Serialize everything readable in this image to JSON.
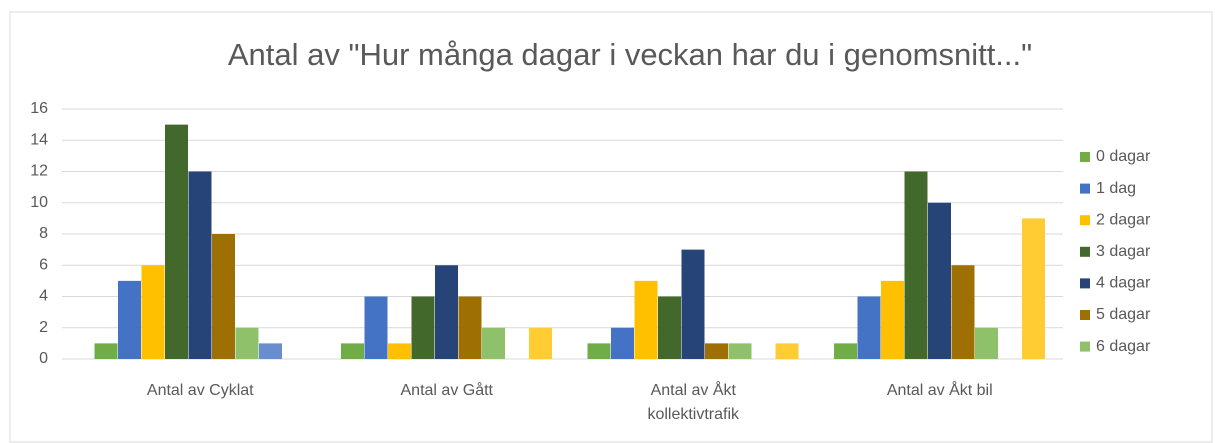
{
  "chart_data": {
    "type": "bar",
    "title": "Antal av \"Hur många dagar i veckan har du i genomsnitt...\"",
    "categories": [
      "Antal av Cyklat",
      "Antal av Gått",
      "Antal av Åkt kollektivtrafik",
      "Antal av Åkt bil"
    ],
    "series": [
      {
        "name": "0 dagar",
        "color": "#70ad47",
        "values": [
          1,
          1,
          1,
          1
        ]
      },
      {
        "name": "1 dag",
        "color": "#4472c4",
        "values": [
          5,
          4,
          2,
          4
        ]
      },
      {
        "name": "2 dagar",
        "color": "#ffc000",
        "values": [
          6,
          1,
          5,
          5
        ]
      },
      {
        "name": "3 dagar",
        "color": "#43682b",
        "values": [
          15,
          4,
          4,
          12
        ]
      },
      {
        "name": "4 dagar",
        "color": "#264478",
        "values": [
          12,
          6,
          7,
          10
        ]
      },
      {
        "name": "5 dagar",
        "color": "#9e7004",
        "values": [
          8,
          4,
          1,
          6
        ]
      },
      {
        "name": "6 dagar",
        "color": "#8fc16b",
        "values": [
          2,
          2,
          1,
          2
        ]
      },
      {
        "color": "#698ed0",
        "values": [
          1,
          null,
          null,
          null
        ]
      },
      {
        "color": "#ffcd33",
        "values": [
          null,
          2,
          1,
          9
        ]
      }
    ],
    "ylim": [
      0,
      16
    ],
    "yticks": [
      0,
      2,
      4,
      6,
      8,
      10,
      12,
      14,
      16
    ],
    "grid": true,
    "legend": "right"
  }
}
